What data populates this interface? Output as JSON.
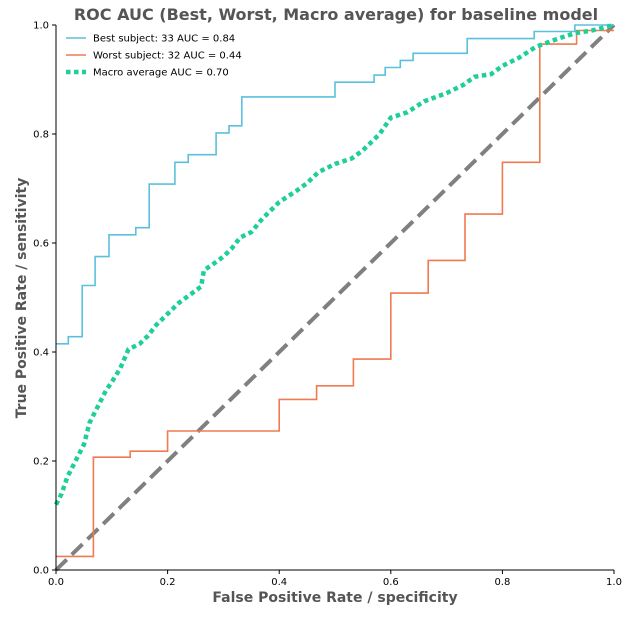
{
  "chart_data": {
    "type": "line",
    "title": "ROC AUC (Best, Worst, Macro average) for baseline model",
    "xlabel": "False Positive Rate / specificity",
    "ylabel": "True Positive Rate / sensitivity",
    "xlim": [
      0,
      1
    ],
    "ylim": [
      0,
      1
    ],
    "xticks": [
      "0.0",
      "0.2",
      "0.4",
      "0.6",
      "0.8",
      "1.0"
    ],
    "yticks": [
      "0.0",
      "0.2",
      "0.4",
      "0.6",
      "0.8",
      "1.0"
    ],
    "grid": false,
    "legend_position": "top-left",
    "series": [
      {
        "name": "Best subject: 33 AUC = 0.84",
        "color": "#5bc0de",
        "style": "step",
        "points": [
          [
            0,
            0.415
          ],
          [
            0.022,
            0.415
          ],
          [
            0.022,
            0.428
          ],
          [
            0.047,
            0.428
          ],
          [
            0.047,
            0.522
          ],
          [
            0.07,
            0.522
          ],
          [
            0.07,
            0.575
          ],
          [
            0.095,
            0.575
          ],
          [
            0.095,
            0.615
          ],
          [
            0.143,
            0.615
          ],
          [
            0.143,
            0.628
          ],
          [
            0.167,
            0.628
          ],
          [
            0.167,
            0.708
          ],
          [
            0.213,
            0.708
          ],
          [
            0.213,
            0.748
          ],
          [
            0.237,
            0.748
          ],
          [
            0.237,
            0.762
          ],
          [
            0.287,
            0.762
          ],
          [
            0.287,
            0.802
          ],
          [
            0.31,
            0.802
          ],
          [
            0.31,
            0.815
          ],
          [
            0.333,
            0.815
          ],
          [
            0.333,
            0.868
          ],
          [
            0.5,
            0.868
          ],
          [
            0.5,
            0.895
          ],
          [
            0.57,
            0.895
          ],
          [
            0.57,
            0.908
          ],
          [
            0.59,
            0.908
          ],
          [
            0.59,
            0.922
          ],
          [
            0.617,
            0.922
          ],
          [
            0.617,
            0.935
          ],
          [
            0.64,
            0.935
          ],
          [
            0.64,
            0.948
          ],
          [
            0.737,
            0.948
          ],
          [
            0.737,
            0.975
          ],
          [
            0.857,
            0.975
          ],
          [
            0.857,
            0.988
          ],
          [
            0.93,
            0.988
          ],
          [
            0.93,
            1.0
          ],
          [
            1.0,
            1.0
          ]
        ]
      },
      {
        "name": "Worst subject: 32 AUC = 0.44",
        "color": "#f07a52",
        "style": "step",
        "points": [
          [
            0,
            0.025
          ],
          [
            0.067,
            0.025
          ],
          [
            0.067,
            0.207
          ],
          [
            0.133,
            0.207
          ],
          [
            0.133,
            0.218
          ],
          [
            0.2,
            0.218
          ],
          [
            0.2,
            0.255
          ],
          [
            0.4,
            0.255
          ],
          [
            0.4,
            0.313
          ],
          [
            0.467,
            0.313
          ],
          [
            0.467,
            0.338
          ],
          [
            0.533,
            0.338
          ],
          [
            0.533,
            0.387
          ],
          [
            0.6,
            0.387
          ],
          [
            0.6,
            0.508
          ],
          [
            0.667,
            0.508
          ],
          [
            0.667,
            0.568
          ],
          [
            0.733,
            0.568
          ],
          [
            0.733,
            0.653
          ],
          [
            0.8,
            0.653
          ],
          [
            0.8,
            0.748
          ],
          [
            0.867,
            0.748
          ],
          [
            0.867,
            0.965
          ],
          [
            0.933,
            0.965
          ],
          [
            0.933,
            0.99
          ],
          [
            1.0,
            0.99
          ]
        ]
      },
      {
        "name": "Macro average AUC = 0.70",
        "color": "#1ecf9a",
        "style": "dotted",
        "points": [
          [
            0,
            0.12
          ],
          [
            0.01,
            0.14
          ],
          [
            0.02,
            0.17
          ],
          [
            0.035,
            0.2
          ],
          [
            0.05,
            0.23
          ],
          [
            0.06,
            0.27
          ],
          [
            0.075,
            0.3
          ],
          [
            0.09,
            0.33
          ],
          [
            0.1,
            0.345
          ],
          [
            0.115,
            0.37
          ],
          [
            0.13,
            0.405
          ],
          [
            0.15,
            0.415
          ],
          [
            0.165,
            0.43
          ],
          [
            0.18,
            0.45
          ],
          [
            0.2,
            0.47
          ],
          [
            0.22,
            0.49
          ],
          [
            0.24,
            0.505
          ],
          [
            0.26,
            0.52
          ],
          [
            0.265,
            0.55
          ],
          [
            0.28,
            0.56
          ],
          [
            0.3,
            0.575
          ],
          [
            0.315,
            0.59
          ],
          [
            0.33,
            0.61
          ],
          [
            0.35,
            0.62
          ],
          [
            0.37,
            0.645
          ],
          [
            0.4,
            0.675
          ],
          [
            0.43,
            0.695
          ],
          [
            0.45,
            0.71
          ],
          [
            0.47,
            0.73
          ],
          [
            0.5,
            0.745
          ],
          [
            0.53,
            0.755
          ],
          [
            0.55,
            0.77
          ],
          [
            0.57,
            0.79
          ],
          [
            0.58,
            0.8
          ],
          [
            0.6,
            0.83
          ],
          [
            0.63,
            0.84
          ],
          [
            0.66,
            0.86
          ],
          [
            0.7,
            0.875
          ],
          [
            0.73,
            0.89
          ],
          [
            0.75,
            0.905
          ],
          [
            0.78,
            0.91
          ],
          [
            0.8,
            0.925
          ],
          [
            0.83,
            0.94
          ],
          [
            0.86,
            0.96
          ],
          [
            0.9,
            0.975
          ],
          [
            0.93,
            0.985
          ],
          [
            0.96,
            0.99
          ],
          [
            1.0,
            1.0
          ]
        ]
      },
      {
        "name": "",
        "color": "#808080",
        "style": "dashed",
        "points": [
          [
            0,
            0
          ],
          [
            1,
            1
          ]
        ]
      }
    ]
  }
}
